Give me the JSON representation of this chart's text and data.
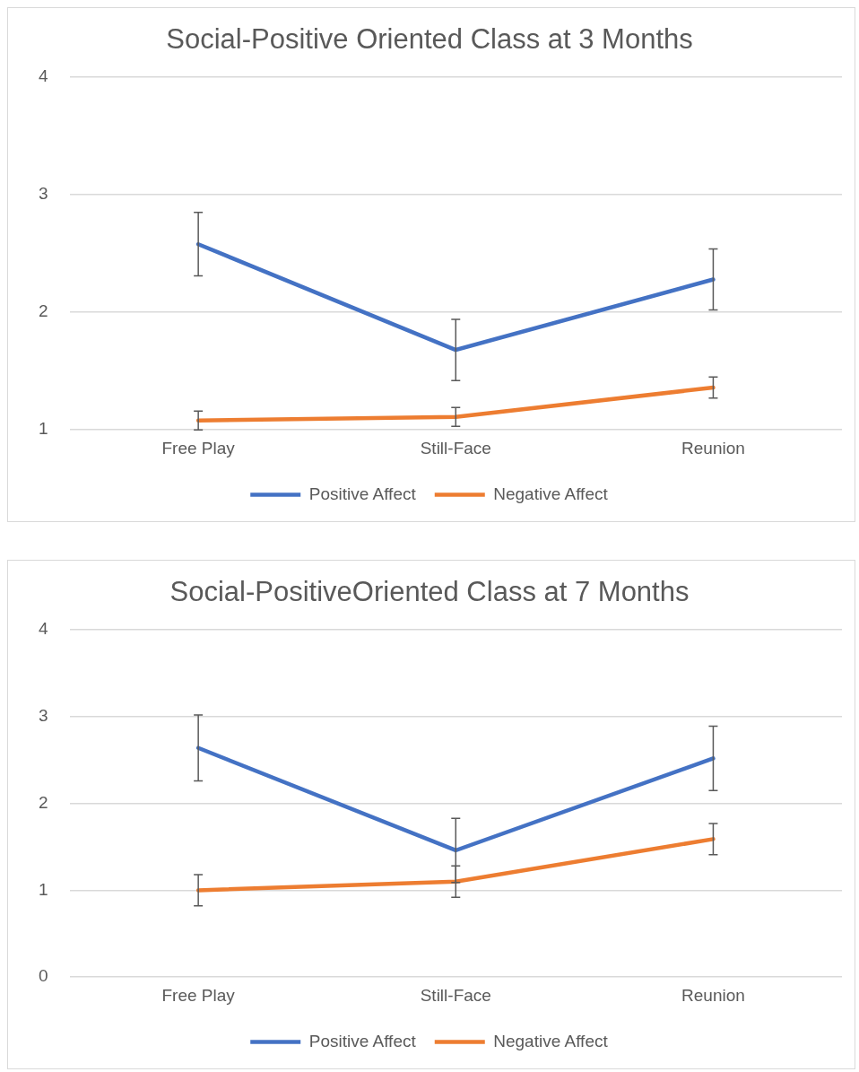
{
  "chart_data": [
    {
      "type": "line",
      "title": "Social-Positive Oriented Class at 3 Months",
      "categories": [
        "Free Play",
        "Still-Face",
        "Reunion"
      ],
      "ylim": [
        1,
        4
      ],
      "yticks": [
        1,
        2,
        3,
        4
      ],
      "grid": "y",
      "legend": "bottom",
      "marker": "none",
      "line_style": "solid",
      "series": [
        {
          "name": "Positive Affect",
          "color": "#4472c4",
          "values": [
            2.58,
            1.68,
            2.28
          ],
          "errors": [
            0.27,
            0.26,
            0.26
          ]
        },
        {
          "name": "Negative Affect",
          "color": "#ed7d31",
          "values": [
            1.08,
            1.11,
            1.36
          ],
          "errors": [
            0.08,
            0.08,
            0.09
          ]
        }
      ]
    },
    {
      "type": "line",
      "title": "Social-PositiveOriented Class at 7 Months",
      "categories": [
        "Free Play",
        "Still-Face",
        "Reunion"
      ],
      "ylim": [
        0,
        4
      ],
      "yticks": [
        0,
        1,
        2,
        3,
        4
      ],
      "grid": "y",
      "legend": "bottom",
      "marker": "none",
      "line_style": "solid",
      "series": [
        {
          "name": "Positive Affect",
          "color": "#4472c4",
          "values": [
            2.64,
            1.46,
            2.52
          ],
          "errors": [
            0.38,
            0.37,
            0.37
          ]
        },
        {
          "name": "Negative Affect",
          "color": "#ed7d31",
          "values": [
            1.0,
            1.1,
            1.59
          ],
          "errors": [
            0.18,
            0.18,
            0.18
          ]
        }
      ]
    }
  ]
}
